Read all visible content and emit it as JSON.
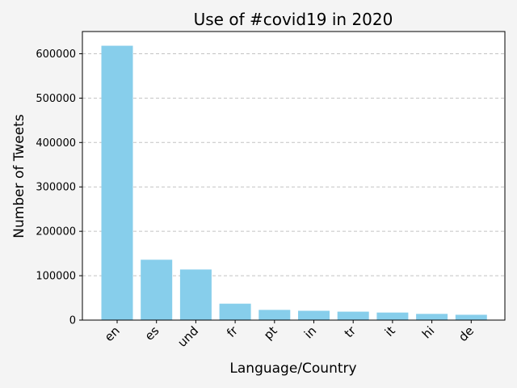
{
  "chart_data": {
    "type": "bar",
    "title": "Use of #covid19 in 2020",
    "xlabel": "Language/Country",
    "ylabel": "Number of Tweets",
    "categories": [
      "en",
      "es",
      "und",
      "fr",
      "pt",
      "in",
      "tr",
      "it",
      "hi",
      "de"
    ],
    "values": [
      618000,
      136000,
      114000,
      37000,
      23000,
      21000,
      19000,
      17000,
      14000,
      12000
    ],
    "ylim": [
      0,
      650000
    ],
    "yticks": [
      0,
      100000,
      200000,
      300000,
      400000,
      500000,
      600000
    ],
    "grid": true,
    "grid_axis": "y",
    "bar_color": "#87ceeb",
    "legend": "none"
  }
}
